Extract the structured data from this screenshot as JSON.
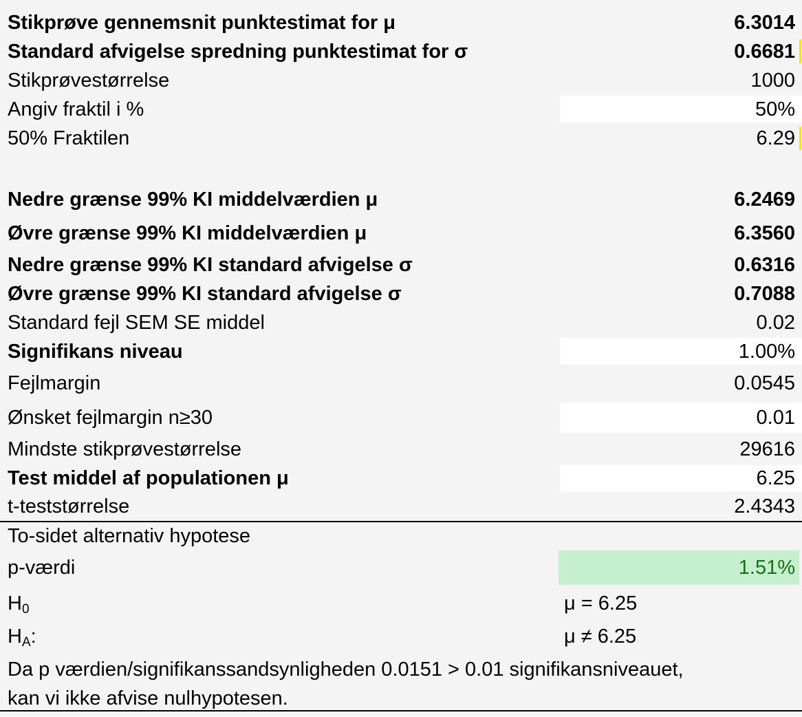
{
  "rows": {
    "mean": {
      "label": "Stikprøve gennemsnit punktestimat for μ",
      "value": "6.3014"
    },
    "sd": {
      "label": "Standard afvigelse spredning punktestimat for σ",
      "value": "0.6681"
    },
    "n": {
      "label": "Stikprøvestørrelse",
      "value": "1000"
    },
    "fractile_input": {
      "label": "Angiv fraktil i %",
      "value": "50%"
    },
    "fractile": {
      "label": "50% Fraktilen",
      "value": "6.29"
    },
    "ci_mean_low": {
      "label": "Nedre grænse 99% KI middelværdien μ",
      "value": "6.2469"
    },
    "ci_mean_high": {
      "label": "Øvre grænse 99% KI middelværdien μ",
      "value": "6.3560"
    },
    "ci_sd_low": {
      "label": "Nedre grænse 99% KI standard afvigelse σ",
      "value": "0.6316"
    },
    "ci_sd_high": {
      "label": "Øvre grænse 99% KI standard afvigelse σ",
      "value": "0.7088"
    },
    "sem": {
      "label": "Standard fejl SEM SE middel",
      "value": "0.02"
    },
    "alpha": {
      "label": "Signifikans niveau",
      "value": "1.00%"
    },
    "margin": {
      "label": "Fejlmargin",
      "value": "0.0545"
    },
    "desired_margin": {
      "label": "Ønsket fejlmargin n≥30",
      "value": "0.01"
    },
    "min_n": {
      "label": "Mindste stikprøvestørrelse",
      "value": "29616"
    },
    "test_mean": {
      "label": "Test middel af populationen μ",
      "value": "6.25"
    },
    "t_stat": {
      "label": "t-teststørrelse",
      "value": "2.4343"
    },
    "alt_hyp": {
      "label": "To-sidet alternativ hypotese"
    },
    "p_value": {
      "label": "p-værdi",
      "value": "1.51%"
    }
  },
  "hypotheses": {
    "h0_letter": "H",
    "h0_sub": "0",
    "h0_value": "μ = 6.25",
    "ha_letter": "H",
    "ha_sub": "A",
    "ha_colon": ":",
    "ha_value": "μ ≠ 6.25"
  },
  "conclusion": {
    "line1": "Da p værdien/signifikanssandsynligheden 0.0151 > 0.01 signifikansniveauet,",
    "line2": "kan vi ikke afvise nulhypotesen."
  },
  "colors": {
    "background": "#f4f4f4",
    "input_cell": "#ffffff",
    "p_value_fill": "#c6efce",
    "p_value_text": "#1a6e1a",
    "marker": "#f2e600"
  }
}
